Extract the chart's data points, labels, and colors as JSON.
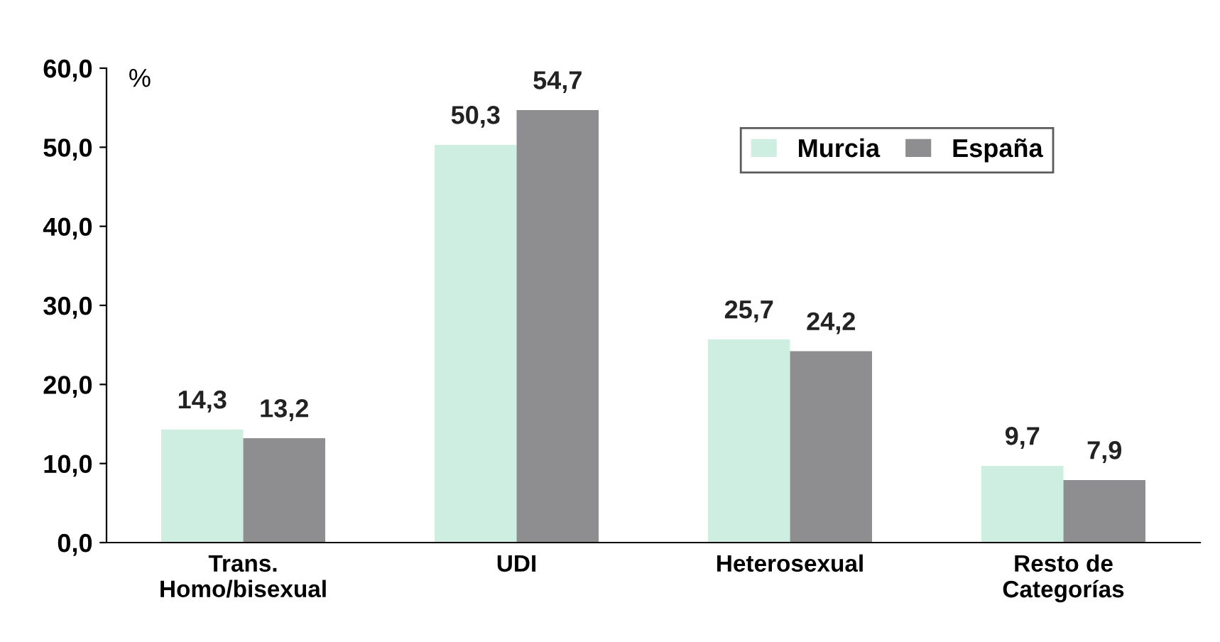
{
  "chart_data": {
    "type": "bar",
    "ylabel": "%",
    "categories": [
      "Trans.\nHomo/bisexual",
      "UDI",
      "Heterosexual",
      "Resto de\nCategorías"
    ],
    "series": [
      {
        "name": "Murcia",
        "color": "#cdeee0",
        "values": [
          14.3,
          50.3,
          25.7,
          9.7
        ],
        "value_labels": [
          "14,3",
          "50,3",
          "25,7",
          "9,7"
        ]
      },
      {
        "name": "España",
        "color": "#8e8e90",
        "values": [
          13.2,
          54.7,
          24.2,
          7.9
        ],
        "value_labels": [
          "13,2",
          "54,7",
          "24,2",
          "7,9"
        ]
      }
    ],
    "ylim": [
      0,
      60
    ],
    "yticks": [
      {
        "value": 0,
        "label": "0,0"
      },
      {
        "value": 10,
        "label": "10,0"
      },
      {
        "value": 20,
        "label": "20,0"
      },
      {
        "value": 30,
        "label": "30,0"
      },
      {
        "value": 40,
        "label": "40,0"
      },
      {
        "value": 50,
        "label": "50,0"
      },
      {
        "value": 60,
        "label": "60,0"
      }
    ],
    "grid": false,
    "legend": "top right"
  }
}
